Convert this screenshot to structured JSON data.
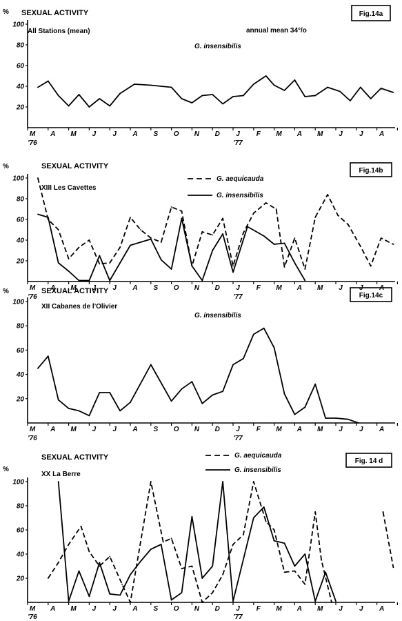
{
  "chart_data": [
    {
      "type": "line",
      "figure_label": "Fig.14a",
      "title": "SEXUAL ACTIVITY",
      "subtitle": "All Stations (mean)",
      "annotation": "annual mean 34°/o",
      "ylabel": "%",
      "ylim": [
        0,
        100
      ],
      "yticks": [
        "100",
        "80",
        "60",
        "40",
        "20"
      ],
      "month_labels": [
        "M",
        "A",
        "M",
        "J",
        "J",
        "A",
        "S",
        "O",
        "N",
        "D",
        "J",
        "F",
        "M",
        "A",
        "M",
        "J",
        "J",
        "A"
      ],
      "year_labels": [
        "'76",
        "'77"
      ],
      "grid": false,
      "series": [
        {
          "name": "G. insensibilis",
          "style": "solid",
          "points": [
            [
              0.5,
              39
            ],
            [
              1.0,
              45
            ],
            [
              1.5,
              31
            ],
            [
              2.0,
              21
            ],
            [
              2.5,
              32
            ],
            [
              3.0,
              20
            ],
            [
              3.5,
              28
            ],
            [
              4.0,
              21
            ],
            [
              4.5,
              33
            ],
            [
              5.2,
              42
            ],
            [
              6.0,
              41
            ],
            [
              7.0,
              39
            ],
            [
              7.5,
              28
            ],
            [
              8.0,
              24
            ],
            [
              8.5,
              31
            ],
            [
              9.0,
              32
            ],
            [
              9.5,
              23
            ],
            [
              10.0,
              30
            ],
            [
              10.5,
              31
            ],
            [
              11.0,
              42
            ],
            [
              11.6,
              50
            ],
            [
              12.0,
              41
            ],
            [
              12.5,
              36
            ],
            [
              13.0,
              46
            ],
            [
              13.5,
              30
            ],
            [
              14.0,
              31
            ],
            [
              14.6,
              39
            ],
            [
              15.2,
              35
            ],
            [
              15.7,
              26
            ],
            [
              16.2,
              39
            ],
            [
              16.7,
              28
            ],
            [
              17.2,
              38
            ],
            [
              17.8,
              34
            ]
          ]
        }
      ]
    },
    {
      "type": "line",
      "figure_label": "Fig.14b",
      "title": "SEXUAL ACTIVITY",
      "subtitle": "XIII   Les Cavettes",
      "ylabel": "%",
      "ylim": [
        0,
        100
      ],
      "yticks": [
        "100",
        "80",
        "60",
        "40",
        "20"
      ],
      "month_labels": [
        "M",
        "A",
        "M",
        "J",
        "J",
        "A",
        "S",
        "O",
        "N",
        "D",
        "J",
        "F",
        "M",
        "A",
        "M",
        "J",
        "J",
        "A"
      ],
      "year_labels": [
        "'76",
        "'77"
      ],
      "grid": false,
      "series": [
        {
          "name": "G. aequicauda",
          "style": "dashed",
          "points": [
            [
              0.5,
              100
            ],
            [
              1.0,
              60
            ],
            [
              1.5,
              50
            ],
            [
              2.0,
              22
            ],
            [
              2.5,
              33
            ],
            [
              3.0,
              40
            ],
            [
              3.5,
              17
            ],
            [
              4.0,
              18
            ],
            [
              4.5,
              33
            ],
            [
              5.0,
              62
            ],
            [
              5.5,
              50
            ],
            [
              6.0,
              42
            ],
            [
              6.5,
              38
            ],
            [
              7.0,
              72
            ],
            [
              7.5,
              68
            ],
            [
              8.0,
              15
            ],
            [
              8.5,
              48
            ],
            [
              9.0,
              45
            ],
            [
              9.5,
              61
            ],
            [
              10.0,
              15
            ],
            [
              10.5,
              47
            ],
            [
              11.0,
              66
            ],
            [
              11.6,
              76
            ],
            [
              12.1,
              70
            ],
            [
              12.5,
              14
            ],
            [
              13.0,
              42
            ],
            [
              13.5,
              12
            ],
            [
              14.0,
              62
            ],
            [
              14.6,
              84
            ],
            [
              15.1,
              64
            ],
            [
              15.6,
              55
            ],
            [
              16.2,
              34
            ],
            [
              16.7,
              15
            ],
            [
              17.2,
              42
            ],
            [
              17.8,
              36
            ]
          ]
        },
        {
          "name": "G. insensibilis",
          "style": "solid",
          "points": [
            [
              0.5,
              65
            ],
            [
              1.0,
              62
            ],
            [
              1.5,
              18
            ],
            [
              2.0,
              10
            ],
            [
              2.5,
              1
            ],
            [
              3.0,
              1
            ],
            [
              3.5,
              25
            ],
            [
              4.0,
              1
            ],
            [
              4.5,
              18
            ],
            [
              5.0,
              35
            ],
            [
              5.5,
              38
            ],
            [
              6.0,
              41
            ],
            [
              6.5,
              21
            ],
            [
              7.0,
              12
            ],
            [
              7.5,
              61
            ],
            [
              8.0,
              15
            ],
            [
              8.5,
              1
            ],
            [
              9.0,
              30
            ],
            [
              9.5,
              46
            ],
            [
              10.0,
              9
            ],
            [
              10.7,
              53
            ],
            [
              11.5,
              44
            ],
            [
              12.0,
              36
            ],
            [
              12.5,
              37
            ],
            [
              13.0,
              18
            ],
            [
              13.5,
              1
            ]
          ]
        }
      ]
    },
    {
      "type": "line",
      "figure_label": "Fig.14c",
      "title": "SEXUAL ACTIVITY",
      "subtitle": "XII  Cabanes de l'Olivier",
      "ylabel": "%",
      "ylim": [
        0,
        100
      ],
      "yticks": [
        "100",
        "80",
        "60",
        "40",
        "20"
      ],
      "month_labels": [
        "M",
        "A",
        "M",
        "J",
        "J",
        "A",
        "S",
        "O",
        "N",
        "D",
        "J",
        "F",
        "M",
        "A",
        "M",
        "J",
        "J",
        "A"
      ],
      "year_labels": [
        "'76",
        "'77"
      ],
      "grid": false,
      "series": [
        {
          "name": "G. insensibilis",
          "style": "solid",
          "points": [
            [
              0.5,
              45
            ],
            [
              1.0,
              55
            ],
            [
              1.5,
              19
            ],
            [
              2.0,
              12
            ],
            [
              2.5,
              10
            ],
            [
              3.0,
              6
            ],
            [
              3.5,
              25
            ],
            [
              4.0,
              25
            ],
            [
              4.5,
              10
            ],
            [
              5.0,
              17
            ],
            [
              6.0,
              48
            ],
            [
              7.0,
              18
            ],
            [
              7.5,
              28
            ],
            [
              8.0,
              34
            ],
            [
              8.5,
              16
            ],
            [
              9.0,
              23
            ],
            [
              9.5,
              26
            ],
            [
              10.0,
              48
            ],
            [
              10.5,
              53
            ],
            [
              11.0,
              73
            ],
            [
              11.5,
              78
            ],
            [
              12.0,
              62
            ],
            [
              12.5,
              24
            ],
            [
              13.0,
              7
            ],
            [
              13.5,
              13
            ],
            [
              14.0,
              32
            ],
            [
              14.5,
              4
            ],
            [
              15.0,
              4
            ],
            [
              15.6,
              3
            ],
            [
              16.1,
              0
            ]
          ]
        }
      ]
    },
    {
      "type": "line",
      "figure_label": "Fig. 14 d",
      "title": "SEXUAL ACTIVITY",
      "subtitle": "XX La Berre",
      "ylabel": "%",
      "ylim": [
        0,
        100
      ],
      "yticks": [
        "100",
        "80",
        "60",
        "40",
        "20"
      ],
      "month_labels": [
        "M",
        "A",
        "M",
        "J",
        "J",
        "A",
        "S",
        "O",
        "N",
        "D",
        "J",
        "F",
        "M",
        "A",
        "M",
        "J",
        "J",
        "A"
      ],
      "year_labels": [
        "'76",
        "'77"
      ],
      "grid": false,
      "series": [
        {
          "name": "G. aequicauda",
          "style": "dashed",
          "segments": [
            [
              [
                1.0,
                20
              ],
              [
                1.5,
                33
              ],
              [
                2.0,
                48
              ],
              [
                2.6,
                63
              ],
              [
                3.0,
                42
              ],
              [
                3.5,
                30
              ],
              [
                4.0,
                38
              ],
              [
                4.6,
                15
              ],
              [
                5.0,
                0
              ],
              [
                6.0,
                100
              ],
              [
                6.6,
                50
              ],
              [
                7.0,
                53
              ],
              [
                7.5,
                28
              ],
              [
                8.0,
                30
              ],
              [
                8.5,
                0
              ],
              [
                9.0,
                8
              ],
              [
                9.5,
                23
              ],
              [
                10.0,
                48
              ],
              [
                10.5,
                56
              ],
              [
                11.0,
                100
              ],
              [
                11.6,
                67
              ],
              [
                12.0,
                60
              ],
              [
                12.5,
                25
              ],
              [
                13.0,
                26
              ],
              [
                13.5,
                15
              ],
              [
                14.0,
                75
              ],
              [
                14.3,
                35
              ],
              [
                14.8,
                0
              ]
            ],
            [
              [
                17.3,
                75
              ],
              [
                17.8,
                29
              ]
            ]
          ]
        },
        {
          "name": "G. insensibilis",
          "style": "solid",
          "points": [
            [
              1.5,
              100
            ],
            [
              2.0,
              1
            ],
            [
              2.5,
              26
            ],
            [
              3.0,
              5
            ],
            [
              3.5,
              33
            ],
            [
              4.0,
              7
            ],
            [
              4.5,
              6
            ],
            [
              5.0,
              23
            ],
            [
              5.5,
              34
            ],
            [
              6.0,
              44
            ],
            [
              6.5,
              48
            ],
            [
              7.0,
              2
            ],
            [
              7.5,
              8
            ],
            [
              8.0,
              71
            ],
            [
              8.5,
              20
            ],
            [
              9.0,
              30
            ],
            [
              9.5,
              100
            ],
            [
              10.0,
              1
            ],
            [
              11.0,
              70
            ],
            [
              11.5,
              79
            ],
            [
              12.0,
              51
            ],
            [
              12.5,
              49
            ],
            [
              13.0,
              30
            ],
            [
              13.5,
              40
            ],
            [
              14.0,
              1
            ],
            [
              14.5,
              25
            ],
            [
              15.0,
              1
            ]
          ]
        }
      ]
    }
  ]
}
